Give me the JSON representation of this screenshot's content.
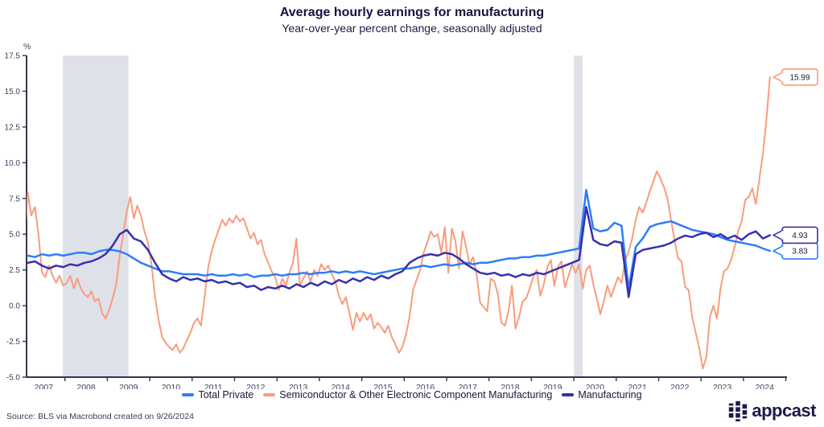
{
  "title": "Average hourly earnings for manufacturing",
  "subtitle": "Year-over-year percent change, seasonally adjusted",
  "source": "Source: BLS via Macrobond created on 9/26/2024",
  "logo": {
    "text": "appcast"
  },
  "colors": {
    "total_private": "#2d7ef7",
    "semiconductor": "#f99c7c",
    "manufacturing": "#3531ae",
    "recession_band": "#dfe1e9",
    "axis": "#34344e",
    "tick_text": "#40405e",
    "callout_text": "#1a1a3e"
  },
  "chart_data": {
    "type": "line",
    "title": "Average hourly earnings for manufacturing",
    "subtitle": "Year-over-year percent change, seasonally adjusted",
    "ylabel_unit": "%",
    "ylim": [
      -5.0,
      17.5
    ],
    "y_ticks": [
      17.5,
      15.0,
      12.5,
      10.0,
      7.5,
      5.0,
      2.5,
      0.0,
      -2.5,
      -5.0
    ],
    "x_years": [
      2007,
      2008,
      2009,
      2010,
      2011,
      2012,
      2013,
      2014,
      2015,
      2016,
      2017,
      2018,
      2019,
      2020,
      2021,
      2022,
      2023,
      2024
    ],
    "grid": false,
    "legend_position": "bottom",
    "recessions": [
      [
        2007.95,
        2009.5
      ],
      [
        2020.0,
        2020.21
      ]
    ],
    "x_start_year": 2007,
    "series": [
      {
        "name": "Total Private",
        "color": "#2d7ef7",
        "end_label": "3.83",
        "start_month": 1,
        "step_months": 2,
        "line_width": 2.5,
        "draw_order": 1,
        "values": [
          3.5,
          3.4,
          3.6,
          3.5,
          3.6,
          3.5,
          3.6,
          3.7,
          3.7,
          3.6,
          3.8,
          3.9,
          3.9,
          3.8,
          3.6,
          3.3,
          3.0,
          2.8,
          2.6,
          2.4,
          2.4,
          2.3,
          2.2,
          2.2,
          2.2,
          2.1,
          2.2,
          2.1,
          2.1,
          2.2,
          2.1,
          2.2,
          2.0,
          2.1,
          2.1,
          2.2,
          2.1,
          2.2,
          2.2,
          2.3,
          2.2,
          2.3,
          2.3,
          2.4,
          2.3,
          2.4,
          2.3,
          2.4,
          2.3,
          2.2,
          2.3,
          2.4,
          2.5,
          2.6,
          2.6,
          2.7,
          2.8,
          2.7,
          2.8,
          2.9,
          2.8,
          2.9,
          3.0,
          2.9,
          3.0,
          3.0,
          3.1,
          3.2,
          3.3,
          3.3,
          3.4,
          3.4,
          3.5,
          3.5,
          3.6,
          3.7,
          3.8,
          3.9,
          4.0,
          8.1,
          5.4,
          5.2,
          5.3,
          5.8,
          5.6,
          1.2,
          4.1,
          4.7,
          5.5,
          5.7,
          5.8,
          5.9,
          5.7,
          5.5,
          5.3,
          5.2,
          5.1,
          5.0,
          4.8,
          4.6,
          4.5,
          4.4,
          4.3,
          4.2,
          4.0,
          3.83
        ]
      },
      {
        "name": "Semiconductor & Other Electronic Component Manufacturing",
        "color": "#f99c7c",
        "end_label": "15.99",
        "start_month": 0,
        "step_months": 1,
        "line_width": 2,
        "draw_order": 0,
        "values": [
          4.4,
          7.9,
          6.3,
          6.9,
          5.0,
          2.3,
          2.0,
          2.8,
          2.1,
          1.6,
          2.1,
          1.4,
          1.6,
          2.1,
          1.2,
          1.9,
          1.2,
          0.8,
          0.6,
          1.0,
          0.3,
          0.5,
          -0.5,
          -0.9,
          -0.3,
          0.5,
          1.5,
          3.5,
          5.0,
          6.6,
          7.6,
          6.1,
          7.0,
          6.3,
          5.2,
          4.4,
          2.9,
          0.6,
          -1.0,
          -2.2,
          -2.6,
          -2.9,
          -3.1,
          -2.7,
          -3.3,
          -3.0,
          -2.4,
          -1.9,
          -1.2,
          -0.9,
          -1.4,
          0.6,
          2.6,
          3.8,
          4.6,
          5.3,
          6.0,
          5.6,
          6.1,
          5.8,
          6.3,
          5.9,
          6.1,
          5.4,
          4.7,
          5.1,
          4.3,
          4.6,
          3.6,
          3.0,
          2.4,
          2.0,
          1.1,
          1.9,
          1.4,
          2.3,
          3.0,
          4.7,
          1.4,
          1.9,
          2.4,
          1.7,
          2.5,
          2.1,
          2.9,
          2.5,
          2.8,
          2.2,
          1.7,
          0.7,
          0.1,
          0.6,
          -0.5,
          -1.7,
          -0.5,
          -1.1,
          -0.5,
          -1.0,
          -0.6,
          -1.6,
          -1.2,
          -1.5,
          -1.9,
          -1.4,
          -2.2,
          -2.7,
          -3.3,
          -2.9,
          -2.0,
          -0.8,
          1.1,
          1.8,
          2.5,
          3.7,
          4.4,
          5.2,
          4.8,
          5.0,
          3.7,
          5.5,
          2.3,
          5.4,
          4.5,
          2.6,
          5.2,
          4.1,
          2.9,
          3.4,
          2.2,
          0.2,
          -0.1,
          -0.4,
          1.9,
          1.7,
          0.8,
          -1.2,
          -1.4,
          -0.4,
          1.4,
          -1.6,
          -0.8,
          0.3,
          0.5,
          1.2,
          2.0,
          2.5,
          0.7,
          1.5,
          2.7,
          3.2,
          1.4,
          2.7,
          3.1,
          1.3,
          2.1,
          2.9,
          2.3,
          2.9,
          1.2,
          2.5,
          2.8,
          1.5,
          0.5,
          -0.6,
          0.3,
          1.4,
          0.6,
          1.3,
          2.0,
          1.6,
          3.1,
          3.8,
          4.7,
          6.0,
          6.9,
          6.5,
          7.2,
          8.0,
          8.7,
          9.4,
          8.9,
          8.3,
          7.5,
          6.0,
          4.6,
          3.3,
          3.1,
          1.3,
          1.1,
          -0.8,
          -1.9,
          -3.0,
          -4.4,
          -3.6,
          -0.8,
          0.0,
          -0.9,
          1.2,
          2.4,
          2.6,
          3.2,
          4.1,
          5.2,
          5.9,
          7.4,
          7.6,
          8.2,
          7.1,
          8.9,
          10.6,
          13.0,
          15.99
        ]
      },
      {
        "name": "Manufacturing",
        "color": "#3531ae",
        "end_label": "4.93",
        "start_month": 1,
        "step_months": 2,
        "line_width": 2.5,
        "draw_order": 2,
        "values": [
          3.0,
          3.1,
          2.8,
          2.6,
          2.8,
          2.7,
          2.9,
          2.8,
          3.0,
          3.1,
          3.3,
          3.6,
          4.2,
          5.0,
          5.3,
          4.7,
          4.5,
          3.9,
          3.0,
          2.2,
          1.9,
          1.7,
          2.0,
          1.8,
          1.9,
          1.7,
          1.8,
          1.6,
          1.7,
          1.5,
          1.6,
          1.3,
          1.4,
          1.1,
          1.3,
          1.2,
          1.4,
          1.2,
          1.5,
          1.3,
          1.6,
          1.4,
          1.7,
          1.5,
          1.8,
          1.6,
          1.9,
          1.7,
          2.0,
          1.8,
          2.1,
          1.9,
          2.2,
          2.4,
          3.0,
          3.3,
          3.5,
          3.6,
          3.5,
          3.7,
          3.6,
          3.3,
          2.9,
          2.6,
          2.3,
          2.2,
          2.3,
          2.1,
          2.2,
          2.0,
          2.2,
          2.1,
          2.3,
          2.2,
          2.4,
          2.6,
          2.8,
          3.0,
          3.2,
          6.9,
          4.6,
          4.3,
          4.2,
          4.5,
          4.4,
          0.6,
          3.6,
          3.9,
          4.0,
          4.1,
          4.2,
          4.4,
          4.7,
          4.9,
          4.8,
          5.0,
          5.1,
          4.8,
          5.0,
          4.7,
          4.9,
          4.6,
          5.0,
          5.2,
          4.7,
          4.93
        ]
      }
    ]
  }
}
